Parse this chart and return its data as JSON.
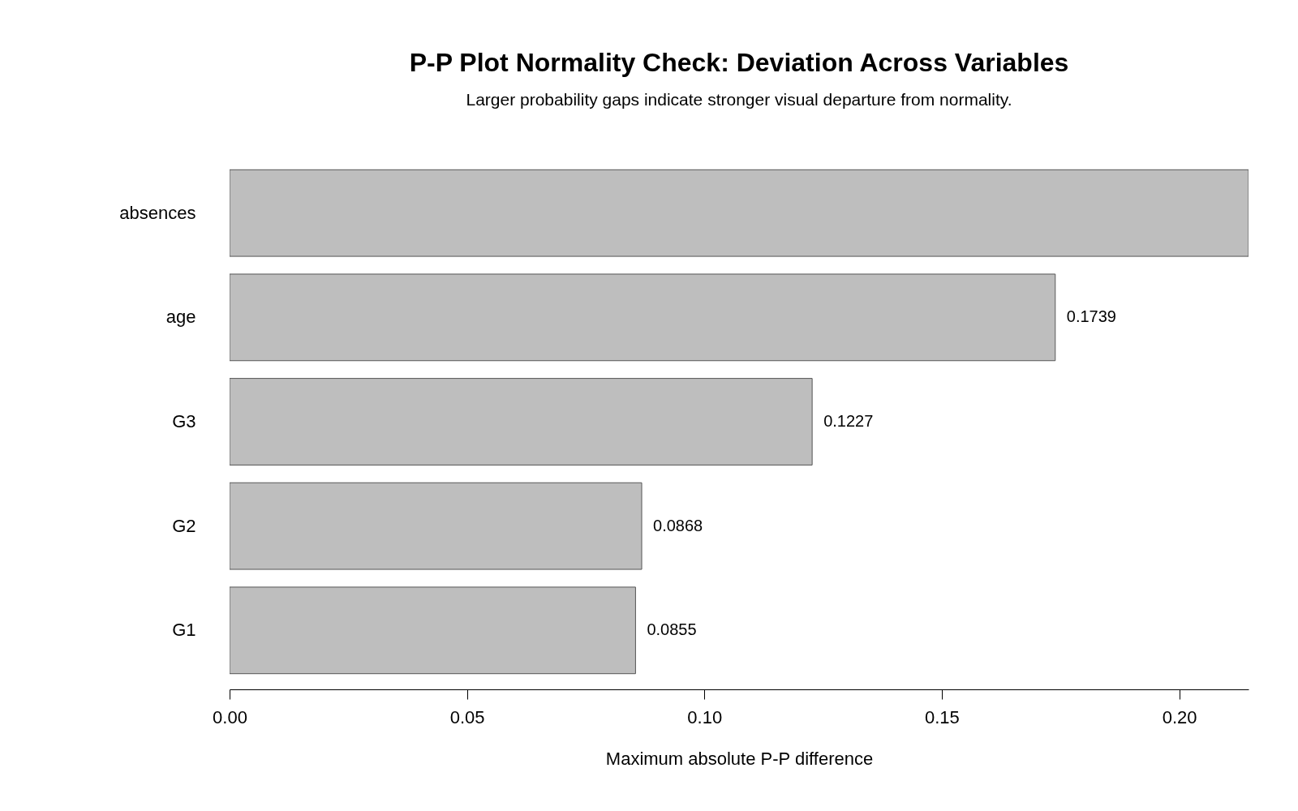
{
  "chart_data": {
    "type": "bar",
    "orientation": "horizontal",
    "title": "P-P Plot Normality Check: Deviation Across Variables",
    "subtitle": "Larger probability gaps indicate stronger visual departure from normality.",
    "xlabel": "Maximum absolute P-P difference",
    "categories": [
      "absences",
      "age",
      "G3",
      "G2",
      "G1"
    ],
    "values": [
      0.2146,
      0.1739,
      0.1227,
      0.0868,
      0.0855
    ],
    "value_labels": [
      null,
      "0.1739",
      "0.1227",
      "0.0868",
      "0.0855"
    ],
    "color": "#bebebe",
    "xlim": [
      0,
      0.2146
    ],
    "xticks": [
      {
        "value": 0,
        "label": "0.00"
      },
      {
        "value": 0.05,
        "label": "0.05"
      },
      {
        "value": 0.1,
        "label": "0.10"
      },
      {
        "value": 0.15,
        "label": "0.15"
      },
      {
        "value": 0.2,
        "label": "0.20"
      }
    ],
    "grid": false
  }
}
